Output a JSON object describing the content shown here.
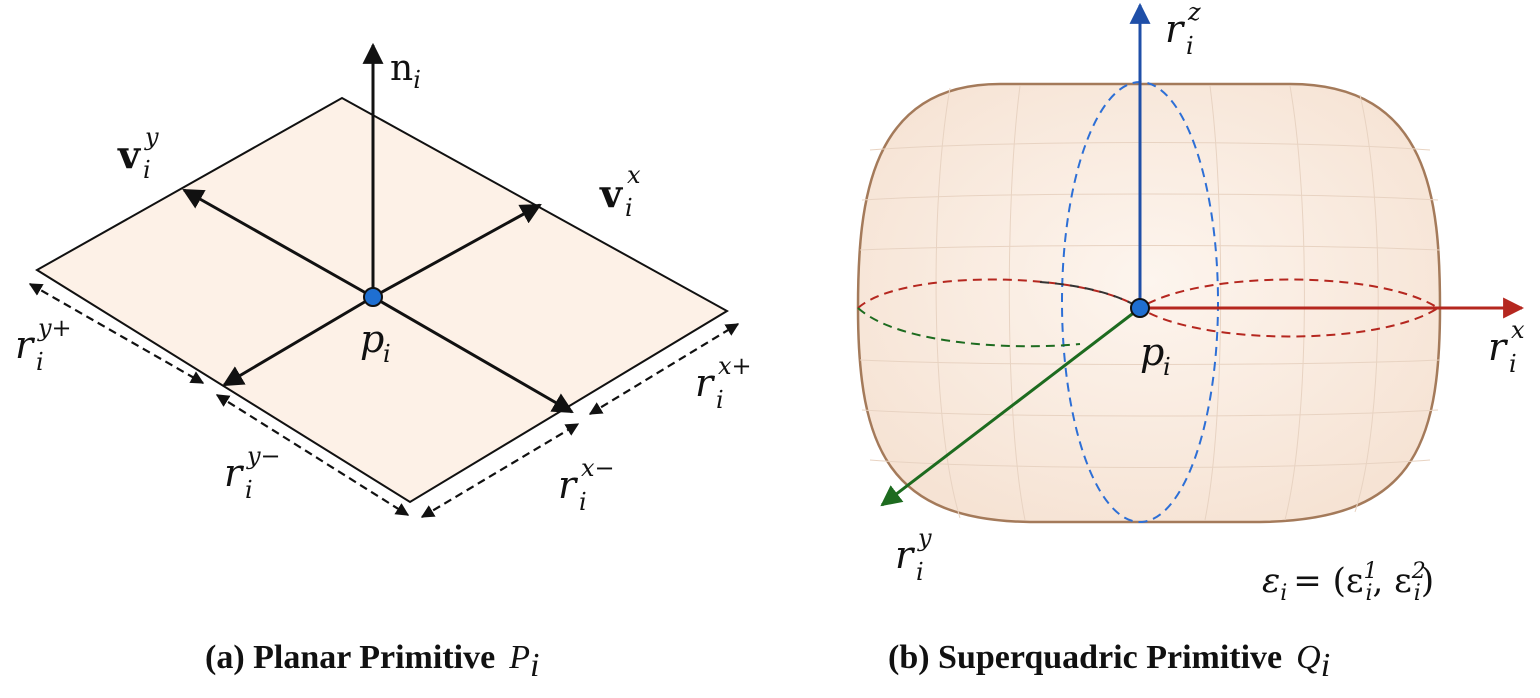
{
  "panel_a": {
    "caption_prefix": "(a) Planar Primitive",
    "caption_symbol": "P",
    "caption_symbol_sub": "i",
    "normal_label": "n",
    "normal_sub": "i",
    "vy_label": "v",
    "vy_sup": "y",
    "vy_sub": "i",
    "vx_label": "v",
    "vx_sup": "x",
    "vx_sub": "i",
    "center_label": "p",
    "center_sub": "i",
    "r_yplus": "r",
    "r_yplus_sup": "y+",
    "r_yplus_sub": "i",
    "r_yminus": "r",
    "r_yminus_sup": "y−",
    "r_yminus_sub": "i",
    "r_xplus": "r",
    "r_xplus_sup": "x+",
    "r_xplus_sub": "i",
    "r_xminus": "r",
    "r_xminus_sup": "x−",
    "r_xminus_sub": "i"
  },
  "panel_b": {
    "caption_prefix": "(b) Superquadric Primitive",
    "caption_symbol": "Q",
    "caption_symbol_sub": "i",
    "rz": "r",
    "rz_sup": "z",
    "rz_sub": "i",
    "rx": "r",
    "rx_sup": "x",
    "rx_sub": "i",
    "ry": "r",
    "ry_sup": "y",
    "ry_sub": "i",
    "center_label": "p",
    "center_sub": "i",
    "epsilon_formula": "ε",
    "epsilon_sub": "i",
    "epsilon_eq": "= (ε",
    "eps1_sup": "1",
    "eps1_sub": "i",
    "eps_comma": ", ε",
    "eps2_sup": "2",
    "eps2_sub": "i",
    "eps_close": ")"
  },
  "colors": {
    "plane_fill": "#fdf1e7",
    "superquadric_fill": "#fbeee3",
    "superquadric_stroke": "#a47a5a",
    "axis_z": "#1f4fa8",
    "axis_x": "#b5271f",
    "axis_y": "#1d6b1f",
    "point_fill": "#1f6fd1"
  }
}
